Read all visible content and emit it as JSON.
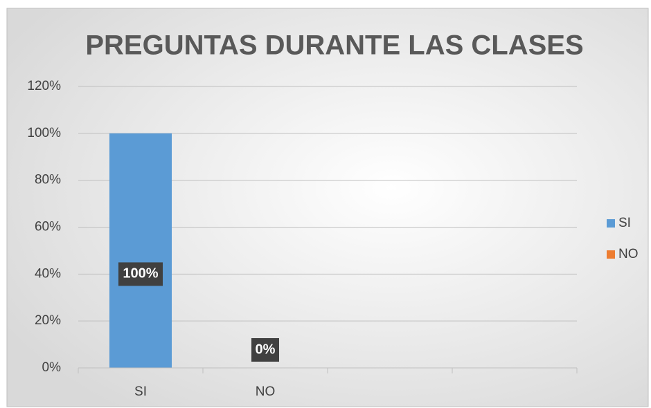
{
  "chart_data": {
    "type": "bar",
    "title": "PREGUNTAS DURANTE LAS CLASES",
    "categories": [
      "SI",
      "NO",
      null,
      null
    ],
    "series": [
      {
        "name": "SI",
        "color": "#5b9bd5",
        "values": [
          100,
          null,
          null,
          null
        ],
        "value_labels": [
          "100%",
          null,
          null,
          null
        ]
      },
      {
        "name": "NO",
        "color": "#ed7d31",
        "values": [
          null,
          0,
          null,
          null
        ],
        "value_labels": [
          null,
          "0%",
          null,
          null
        ]
      }
    ],
    "ylim": [
      0,
      120
    ],
    "yticks": [
      {
        "value": 0,
        "label": "0%"
      },
      {
        "value": 20,
        "label": "20%"
      },
      {
        "value": 40,
        "label": "40%"
      },
      {
        "value": 60,
        "label": "60%"
      },
      {
        "value": 80,
        "label": "80%"
      },
      {
        "value": 100,
        "label": "100%"
      },
      {
        "value": 120,
        "label": "120%"
      }
    ],
    "grid": true,
    "legend": "right"
  }
}
